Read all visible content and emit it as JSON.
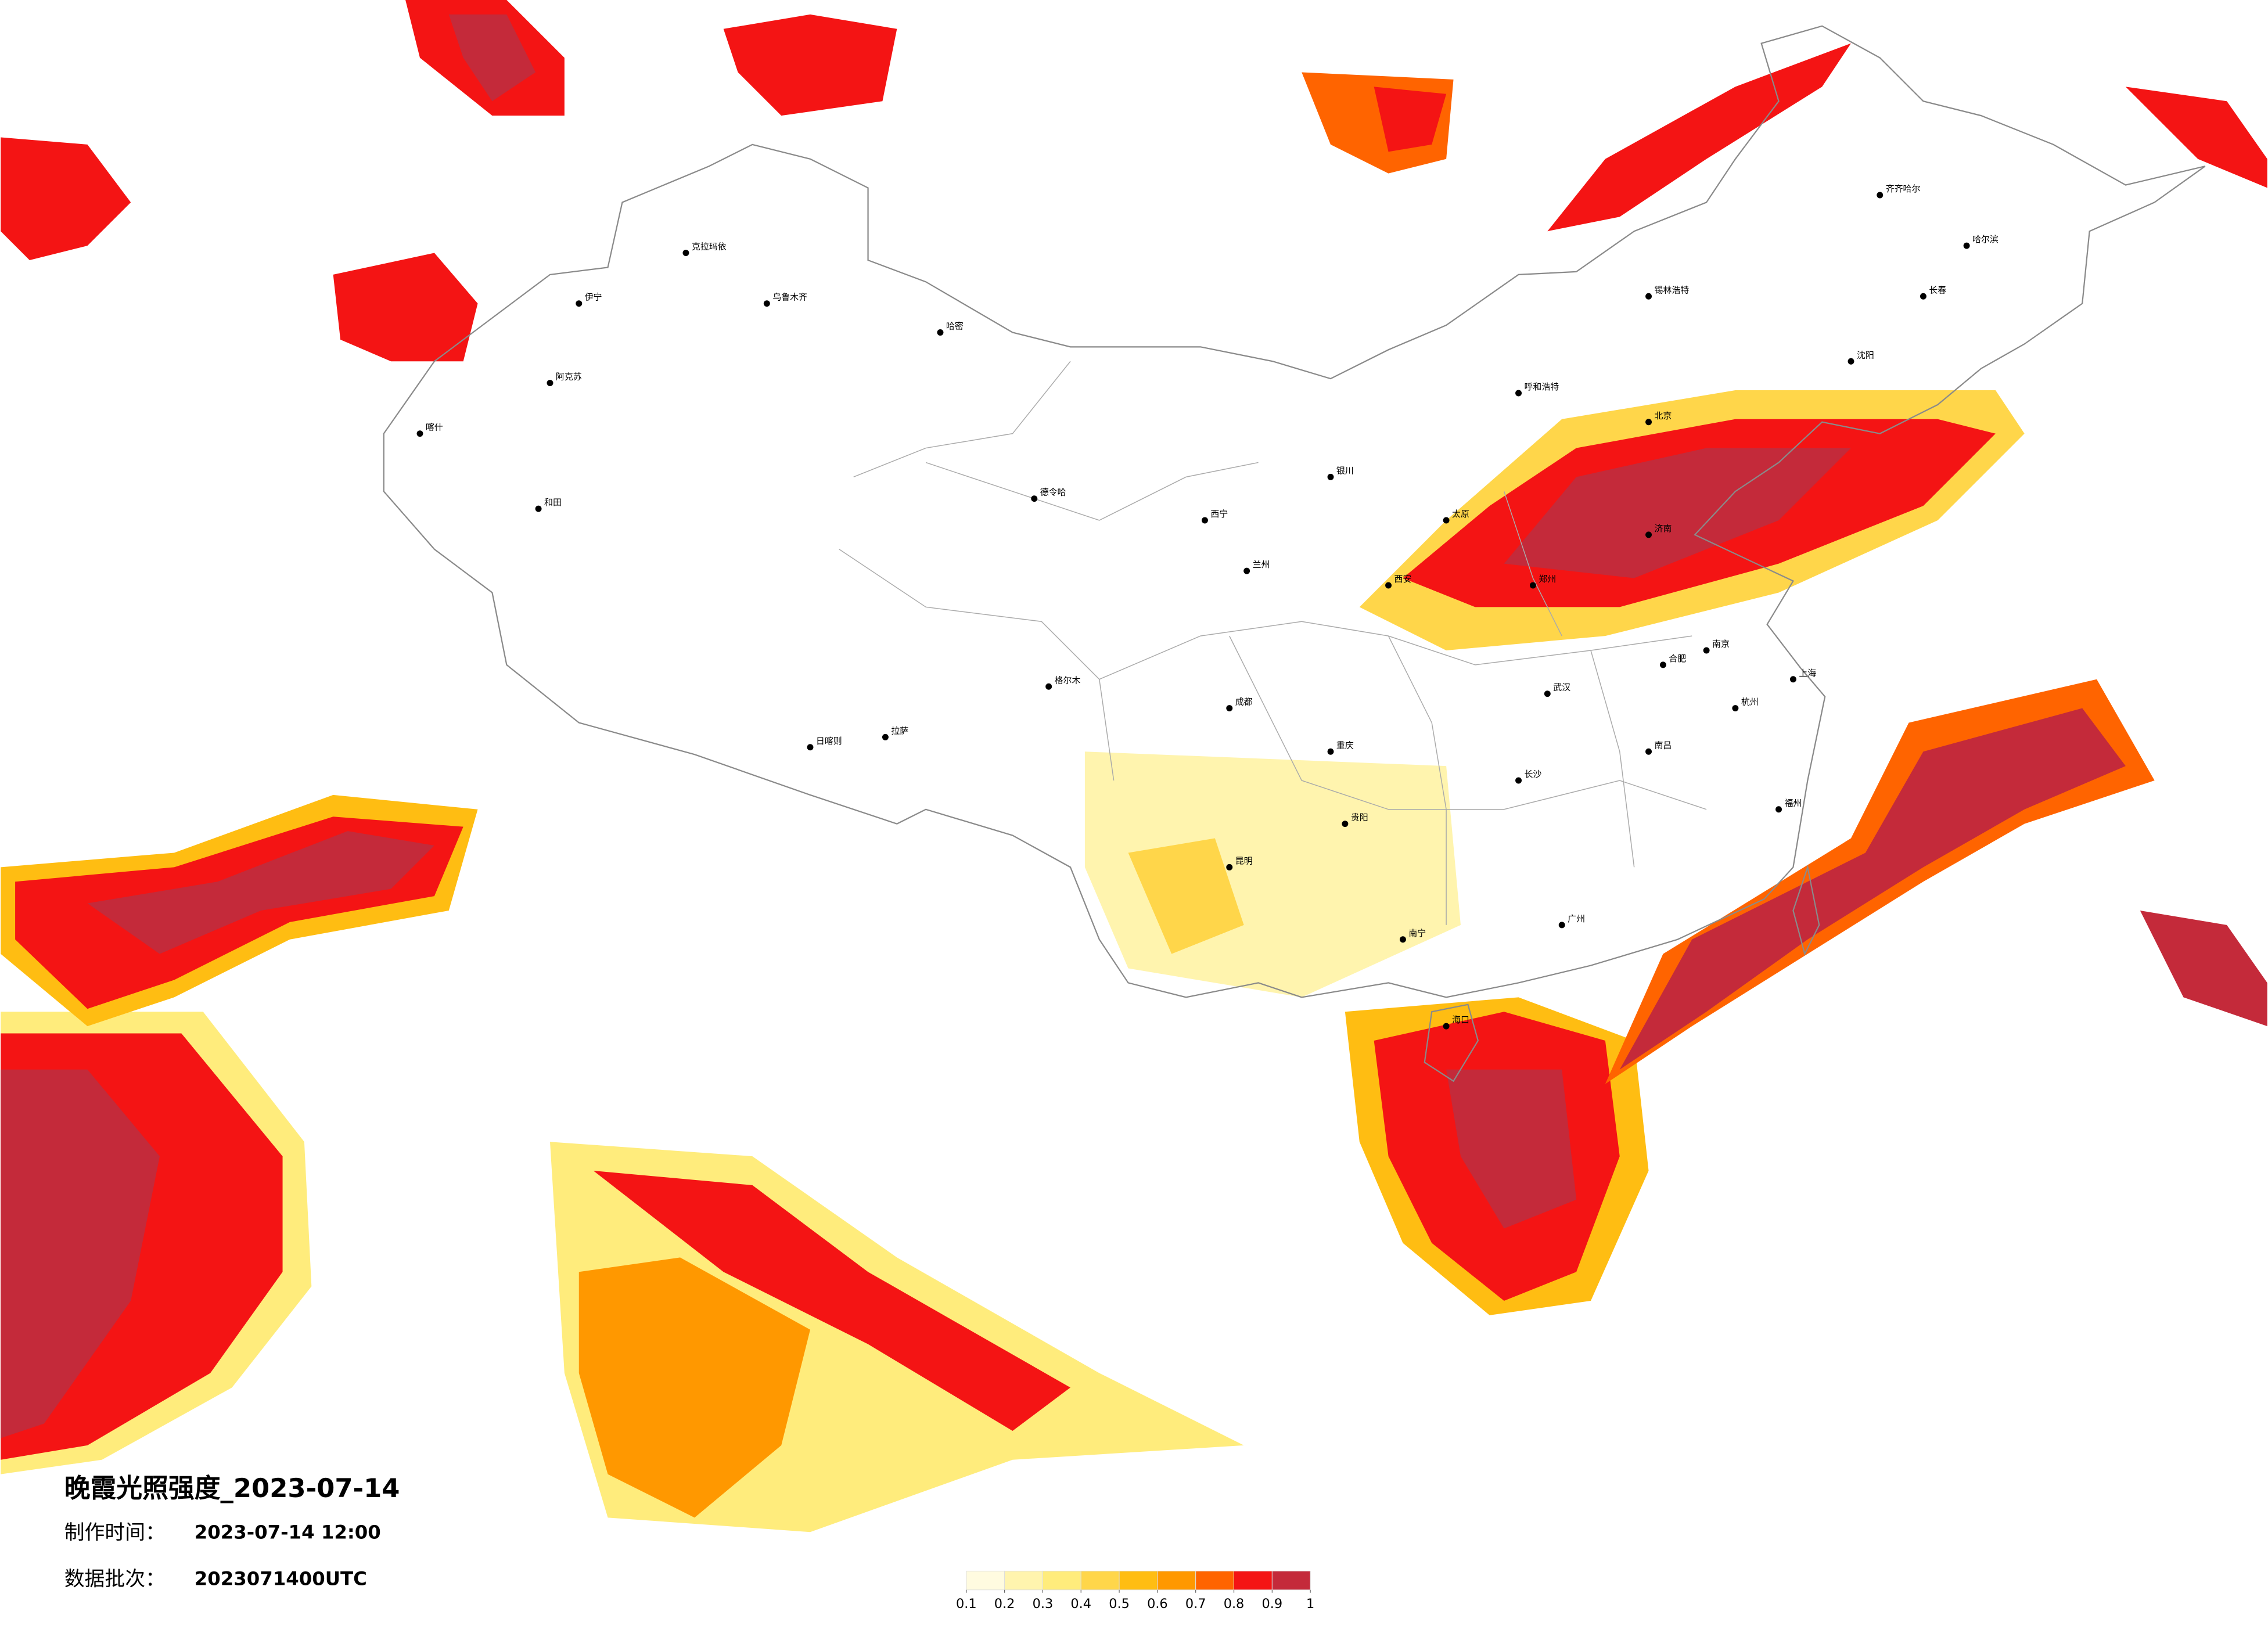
{
  "title": "晚霞光照强度_2023-07-14",
  "made_label": "制作时间：",
  "made_time": "2023-07-14 12:00",
  "batch_label": "数据批次：",
  "batch": "2023071400UTC",
  "legend": {
    "ticks": [
      0.1,
      0.2,
      0.3,
      0.4,
      0.5,
      0.6,
      0.7,
      0.8,
      0.9,
      1
    ],
    "colors": [
      "#fffbe0",
      "#fff4ae",
      "#ffec7c",
      "#ffd64a",
      "#ffbd12",
      "#ff9800",
      "#ff6400",
      "#f41414",
      "#c42a3a"
    ]
  },
  "cities": [
    "克拉玛依",
    "伊宁",
    "乌鲁木齐",
    "阿克苏",
    "和田",
    "喀什",
    "哈密",
    "拉萨",
    "日喀则",
    "西宁",
    "兰州",
    "北京",
    "哈尔滨",
    "长春",
    "沈阳",
    "呼和浩特",
    "西安",
    "成都",
    "重庆",
    "昆明",
    "贵阳",
    "南宁",
    "广州",
    "武汉",
    "长沙",
    "上海",
    "福州",
    "海口",
    "齐齐哈尔",
    "锡林浩特",
    "德令哈",
    "格尔木",
    "太原",
    "郑州",
    "济南",
    "南京",
    "杭州",
    "合肥",
    "南昌",
    "银川"
  ]
}
